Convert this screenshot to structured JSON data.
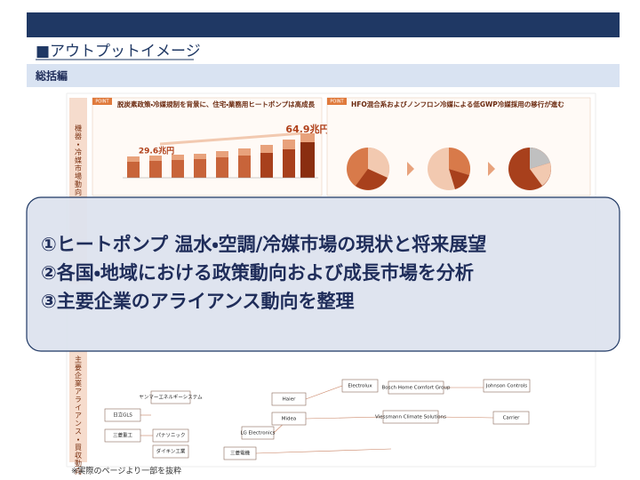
{
  "header": {
    "title": "■アウトプットイメージ",
    "section": "総括編"
  },
  "preview": {
    "side_labels": [
      "機器・冷媒市場動向",
      "主要企業アライアンス・買収動向"
    ],
    "panels": [
      {
        "label": "POINT",
        "title": "脱炭素政策・冷媒規制を背景に、住宅・業務用ヒートポンプは高成長",
        "callouts": [
          "29.6兆円",
          "64.9兆円"
        ]
      },
      {
        "label": "POINT",
        "title": "HFO混合系およびノンフロン冷媒による低GWP冷媒採用の移行が進む"
      }
    ],
    "companies": [
      "日立GLS",
      "三菱重工",
      "ヤンマーエネルギーシステム",
      "パナソニック",
      "ダイキン工業",
      "三菱電機",
      "LG Electronics",
      "Haier",
      "Midea",
      "Electrolux",
      "Bosch Home Comfort Group",
      "Johnson Controls",
      "Viessmann Climate Solutions",
      "Carrier"
    ]
  },
  "overlay": {
    "lines": [
      "①ヒートポンプ 温水・空調/冷媒市場の現状と将来展望",
      "②各国・地域における政策動向および成長市場を分析",
      "③主要企業のアライアンス動向を整理"
    ]
  },
  "footnote": "※実際のページより一部を抜粋"
}
